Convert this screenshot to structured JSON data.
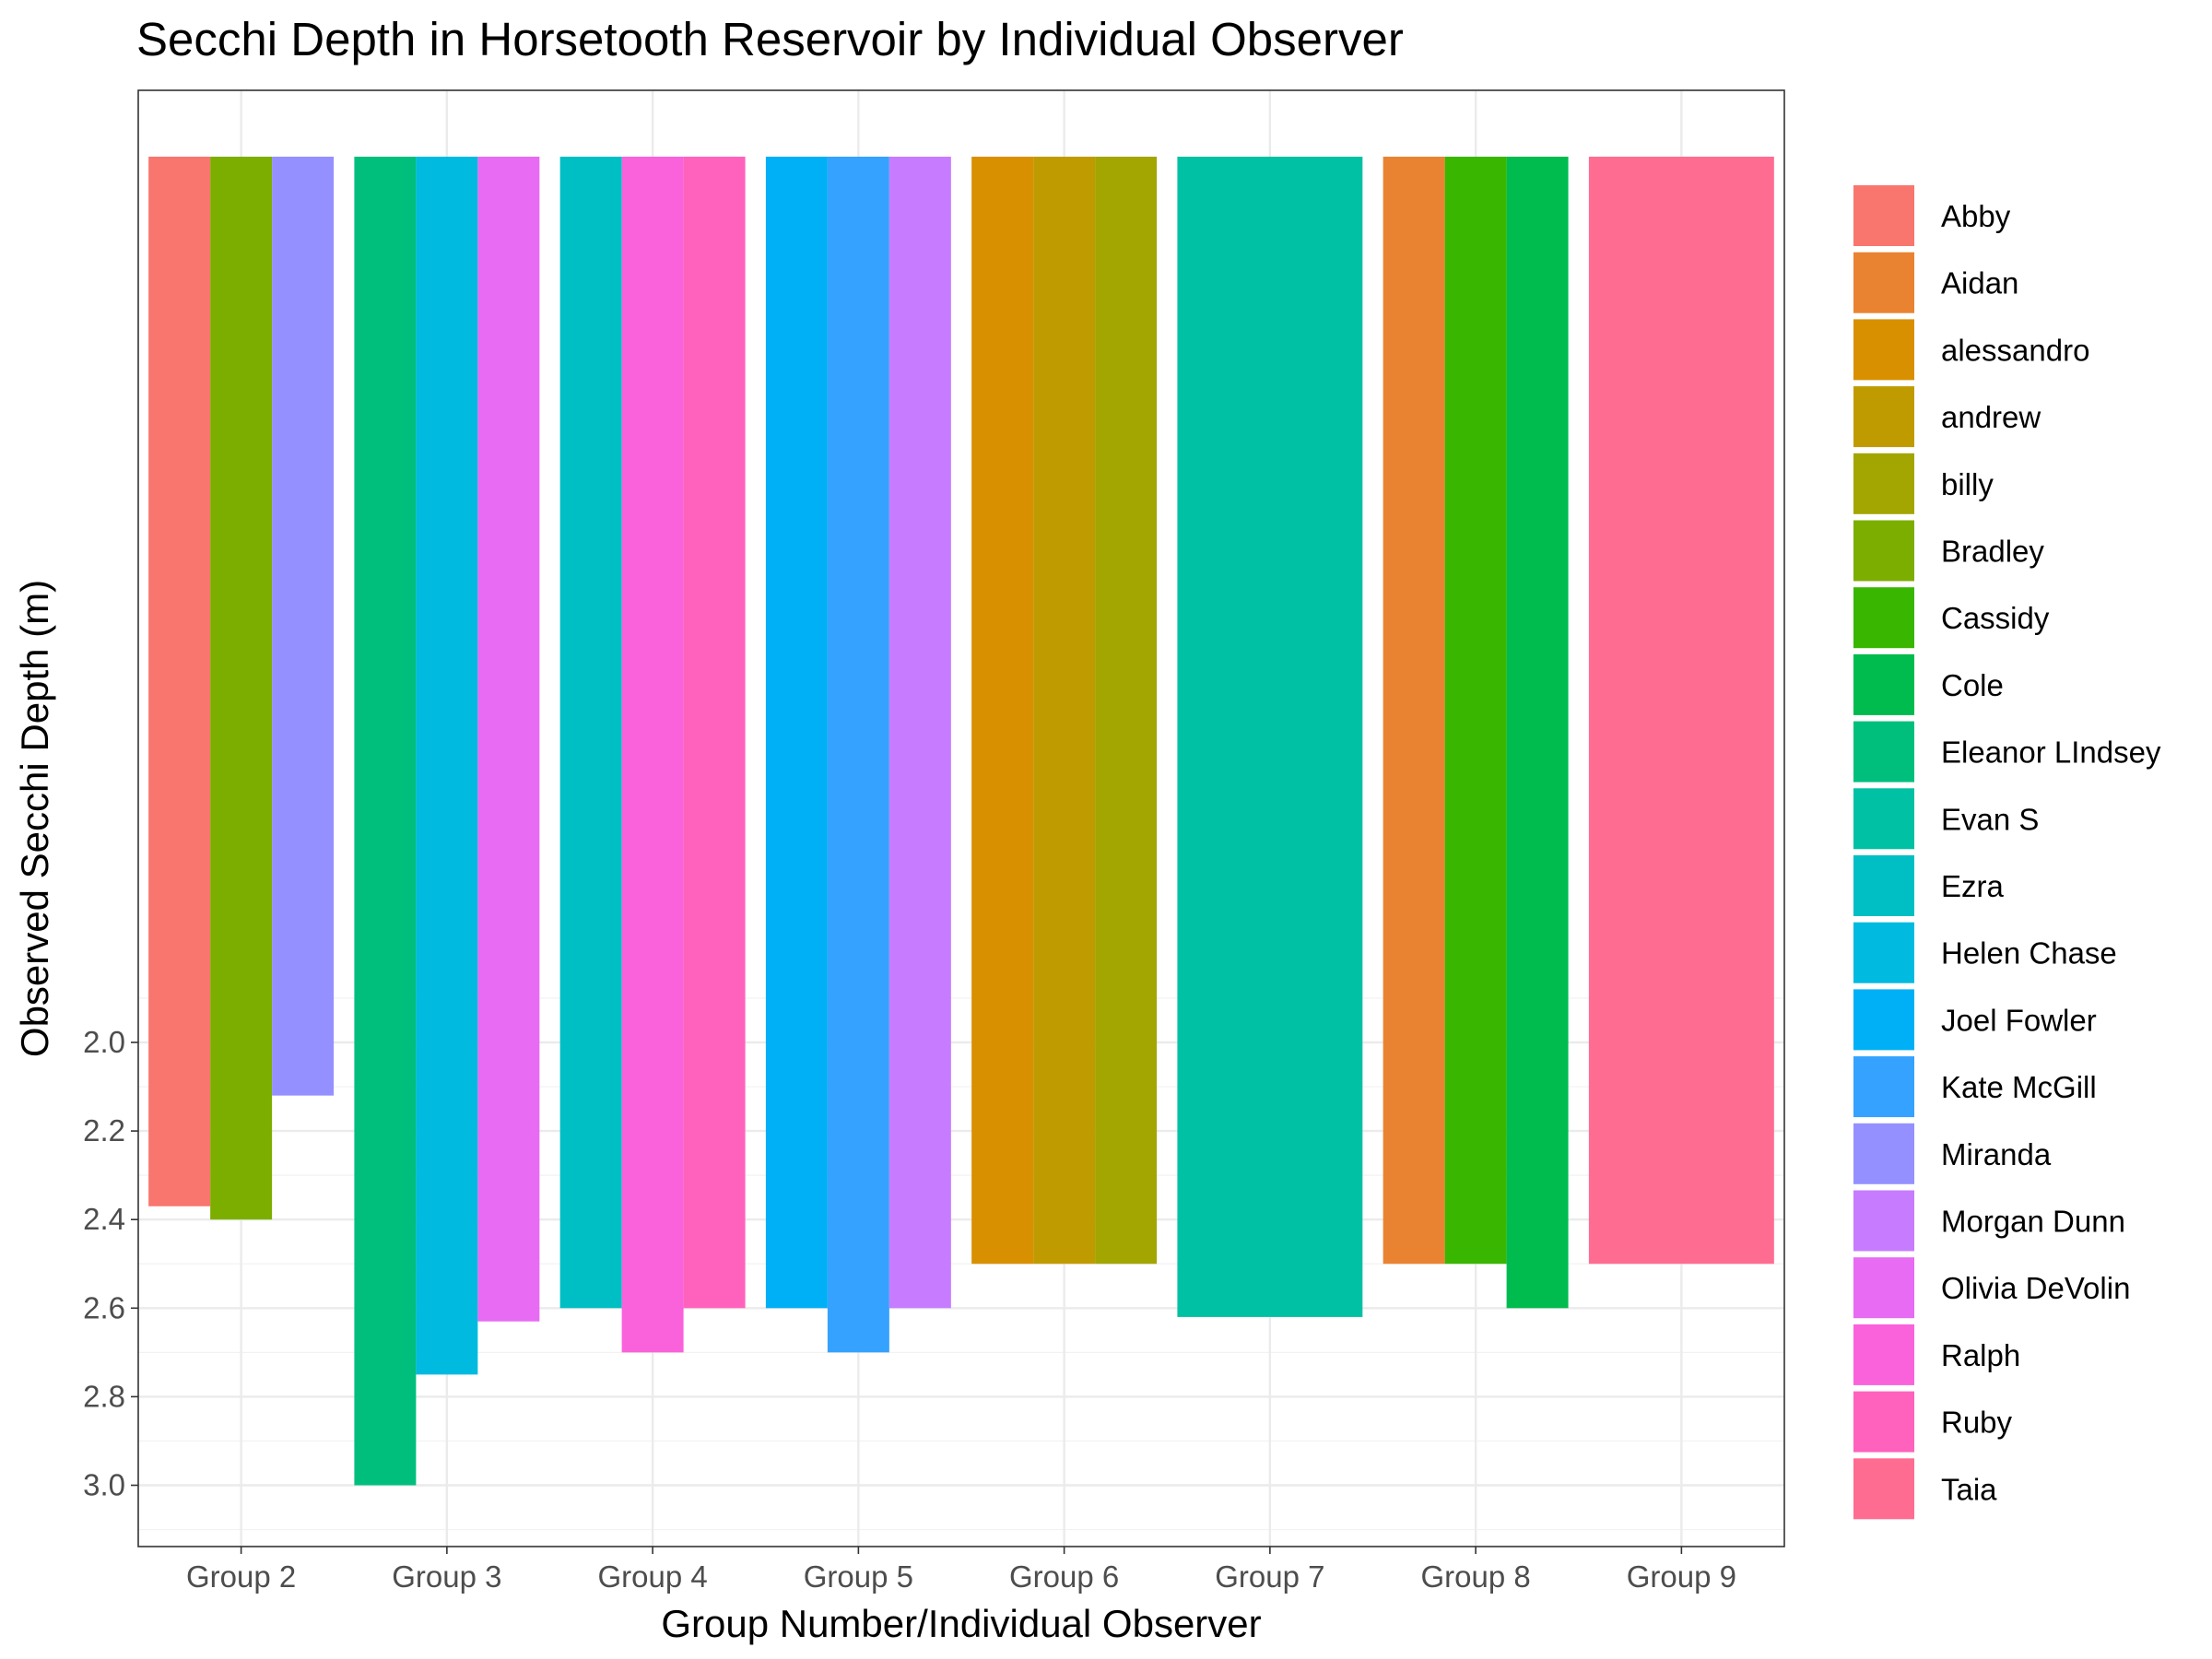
{
  "chart_data": {
    "type": "bar",
    "title": "Secchi Depth in Horsetooth Reservoir by Individual Observer",
    "xlabel": "Group Number/Individual Observer",
    "ylabel": "Observed Secchi Depth (m)",
    "y_reversed": true,
    "ylim": [
      0,
      3.1
    ],
    "y_ticks": [
      "2.0",
      "2.2",
      "2.4",
      "2.6",
      "2.8",
      "3.0"
    ],
    "grid": true,
    "legend_position": "right",
    "categories": [
      "Group 2",
      "Group 3",
      "Group 4",
      "Group 5",
      "Group 6",
      "Group 7",
      "Group 8",
      "Group 9"
    ],
    "observers": [
      {
        "name": "Abby",
        "color": "#F8766D"
      },
      {
        "name": "Aidan",
        "color": "#EA8331"
      },
      {
        "name": "alessandro",
        "color": "#D89000"
      },
      {
        "name": "andrew",
        "color": "#C09B00"
      },
      {
        "name": "billy",
        "color": "#A3A500"
      },
      {
        "name": "Bradley",
        "color": "#7CAE00"
      },
      {
        "name": "Cassidy",
        "color": "#39B600"
      },
      {
        "name": "Cole",
        "color": "#00BB4E"
      },
      {
        "name": "Eleanor LIndsey",
        "color": "#00BF7D"
      },
      {
        "name": "Evan S",
        "color": "#00C1A3"
      },
      {
        "name": "Ezra",
        "color": "#00BFC4"
      },
      {
        "name": "Helen Chase",
        "color": "#00BAE0"
      },
      {
        "name": "Joel Fowler",
        "color": "#00B0F6"
      },
      {
        "name": "Kate McGill",
        "color": "#35A2FF"
      },
      {
        "name": "Miranda",
        "color": "#9590FF"
      },
      {
        "name": "Morgan Dunn",
        "color": "#C77CFF"
      },
      {
        "name": "Olivia DeVolin",
        "color": "#E76BF3"
      },
      {
        "name": "Ralph",
        "color": "#FA62DB"
      },
      {
        "name": "Ruby",
        "color": "#FF62BC"
      },
      {
        "name": "Taia",
        "color": "#FF6C91"
      }
    ],
    "bars": [
      {
        "group": "Group 2",
        "observer": "Abby",
        "value": 2.37
      },
      {
        "group": "Group 2",
        "observer": "Bradley",
        "value": 2.4
      },
      {
        "group": "Group 2",
        "observer": "Miranda",
        "value": 2.12
      },
      {
        "group": "Group 3",
        "observer": "Eleanor LIndsey",
        "value": 3.0
      },
      {
        "group": "Group 3",
        "observer": "Helen Chase",
        "value": 2.75
      },
      {
        "group": "Group 3",
        "observer": "Olivia DeVolin",
        "value": 2.63
      },
      {
        "group": "Group 4",
        "observer": "Ezra",
        "value": 2.6
      },
      {
        "group": "Group 4",
        "observer": "Ralph",
        "value": 2.7
      },
      {
        "group": "Group 4",
        "observer": "Ruby",
        "value": 2.6
      },
      {
        "group": "Group 5",
        "observer": "Joel Fowler",
        "value": 2.6
      },
      {
        "group": "Group 5",
        "observer": "Kate McGill",
        "value": 2.7
      },
      {
        "group": "Group 5",
        "observer": "Morgan Dunn",
        "value": 2.6
      },
      {
        "group": "Group 6",
        "observer": "alessandro",
        "value": 2.5
      },
      {
        "group": "Group 6",
        "observer": "andrew",
        "value": 2.5
      },
      {
        "group": "Group 6",
        "observer": "billy",
        "value": 2.5
      },
      {
        "group": "Group 7",
        "observer": "Evan S",
        "value": 2.62
      },
      {
        "group": "Group 8",
        "observer": "Aidan",
        "value": 2.5
      },
      {
        "group": "Group 8",
        "observer": "Cassidy",
        "value": 2.5
      },
      {
        "group": "Group 8",
        "observer": "Cole",
        "value": 2.6
      },
      {
        "group": "Group 9",
        "observer": "Taia",
        "value": 2.5
      }
    ]
  }
}
